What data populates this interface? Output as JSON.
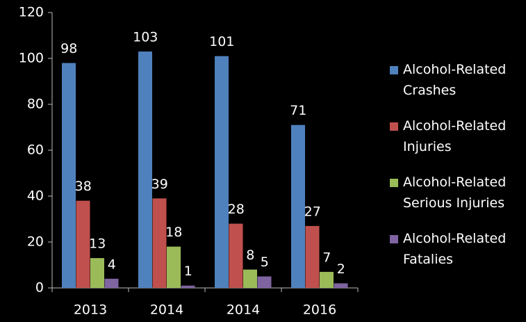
{
  "chart_data": {
    "type": "bar",
    "categories": [
      "2013",
      "2014",
      "2014",
      "2016"
    ],
    "series": [
      {
        "name": "Alcohol-Related Crashes",
        "color": "#4f81bd",
        "values": [
          98,
          103,
          101,
          71
        ]
      },
      {
        "name": "Alcohol-Related Injuries",
        "color": "#c0504d",
        "values": [
          38,
          39,
          28,
          27
        ]
      },
      {
        "name": "Alcohol-Related Serious Injuries",
        "color": "#9bbb59",
        "values": [
          13,
          18,
          8,
          7
        ]
      },
      {
        "name": "Alcohol-Related Fatalies",
        "color": "#8064a2",
        "values": [
          4,
          1,
          5,
          2
        ]
      }
    ],
    "ylim": [
      0,
      120
    ],
    "yticks": [
      0,
      20,
      40,
      60,
      80,
      100,
      120
    ],
    "legend": "right"
  }
}
